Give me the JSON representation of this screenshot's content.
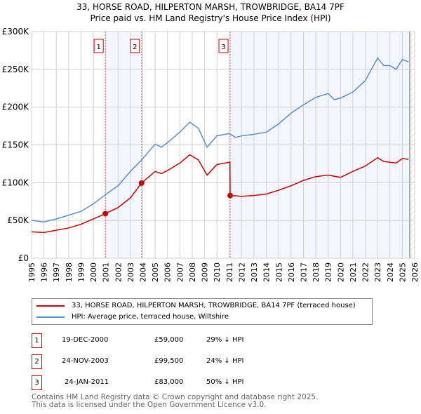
{
  "chart_data": {
    "type": "line",
    "title": "33, HORSE ROAD, HILPERTON MARSH, TROWBRIDGE, BA14 7PF",
    "subtitle": "Price paid vs. HM Land Registry's House Price Index (HPI)",
    "xlim": [
      1995,
      2026
    ],
    "ylim": [
      0,
      300000
    ],
    "x_ticks": [
      "1995",
      "1996",
      "1997",
      "1998",
      "1999",
      "2000",
      "2001",
      "2002",
      "2003",
      "2004",
      "2005",
      "2006",
      "2007",
      "2008",
      "2009",
      "2010",
      "2011",
      "2012",
      "2013",
      "2014",
      "2015",
      "2016",
      "2017",
      "2018",
      "2019",
      "2020",
      "2021",
      "2022",
      "2023",
      "2024",
      "2025",
      "2026"
    ],
    "y_ticks": [
      {
        "v": 0,
        "label": "£0"
      },
      {
        "v": 50000,
        "label": "£50K"
      },
      {
        "v": 100000,
        "label": "£100K"
      },
      {
        "v": 150000,
        "label": "£150K"
      },
      {
        "v": 200000,
        "label": "£200K"
      },
      {
        "v": 250000,
        "label": "£250K"
      },
      {
        "v": 300000,
        "label": "£300K"
      }
    ],
    "grid": true,
    "series": [
      {
        "name": "33, HORSE ROAD, HILPERTON MARSH, TROWBRIDGE, BA14 7PF (terraced house)",
        "color": "#cc0000",
        "x": [
          1995,
          1996,
          1997,
          1998,
          1999,
          2000,
          2000.97,
          2002,
          2003,
          2003.9,
          2005,
          2005.5,
          2006,
          2007,
          2007.8,
          2008.5,
          2009.2,
          2010,
          2011,
          2011.05,
          2011.07,
          2012,
          2013,
          2014,
          2015,
          2016,
          2017,
          2018,
          2019,
          2020,
          2021,
          2022,
          2023,
          2023.5,
          2024,
          2024.5,
          2025,
          2025.5
        ],
        "y": [
          35000,
          34000,
          37000,
          40000,
          45000,
          52000,
          59000,
          67000,
          80000,
          99500,
          115000,
          112000,
          116000,
          126000,
          137000,
          130000,
          110000,
          124000,
          127000,
          127000,
          83000,
          82000,
          83000,
          85000,
          90000,
          96000,
          103000,
          108000,
          110000,
          107000,
          115000,
          122000,
          133000,
          128000,
          127000,
          126000,
          132000,
          131000
        ]
      },
      {
        "name": "HPI: Average price, terraced house, Wiltshire",
        "color": "#5b8fd0",
        "x": [
          1995,
          1996,
          1997,
          1998,
          1999,
          2000,
          2000.97,
          2002,
          2003,
          2003.9,
          2005,
          2005.5,
          2006,
          2007,
          2007.8,
          2008.5,
          2009.2,
          2010,
          2011,
          2011.5,
          2012,
          2013,
          2014,
          2015,
          2016,
          2017,
          2018,
          2019,
          2019.5,
          2020,
          2021,
          2022,
          2023,
          2023.5,
          2024,
          2024.5,
          2025,
          2025.5
        ],
        "y": [
          50000,
          48000,
          52000,
          57000,
          62000,
          72000,
          84000,
          96000,
          115000,
          130000,
          151000,
          147000,
          153000,
          167000,
          180000,
          172000,
          147000,
          162000,
          165000,
          160000,
          162000,
          164000,
          167000,
          178000,
          192000,
          203000,
          213000,
          218000,
          210000,
          212000,
          220000,
          235000,
          265000,
          255000,
          255000,
          250000,
          263000,
          260000
        ]
      }
    ],
    "sales": [
      {
        "n": "1",
        "x": 2000.97,
        "date": "19-DEC-2000",
        "price_label": "£59,000",
        "price": 59000,
        "hpi": "29% ↓ HPI"
      },
      {
        "n": "2",
        "x": 2003.9,
        "date": "24-NOV-2003",
        "price_label": "£99,500",
        "price": 99500,
        "hpi": "24% ↓ HPI"
      },
      {
        "n": "3",
        "x": 2011.07,
        "date": "24-JAN-2011",
        "price_label": "£83,000",
        "price": 83000,
        "hpi": "50% ↓ HPI"
      }
    ],
    "forecast_from": 2025.6
  },
  "footer": {
    "line1": "Contains HM Land Registry data © Crown copyright and database right 2025.",
    "line2": "This data is licensed under the Open Government Licence v3.0."
  }
}
